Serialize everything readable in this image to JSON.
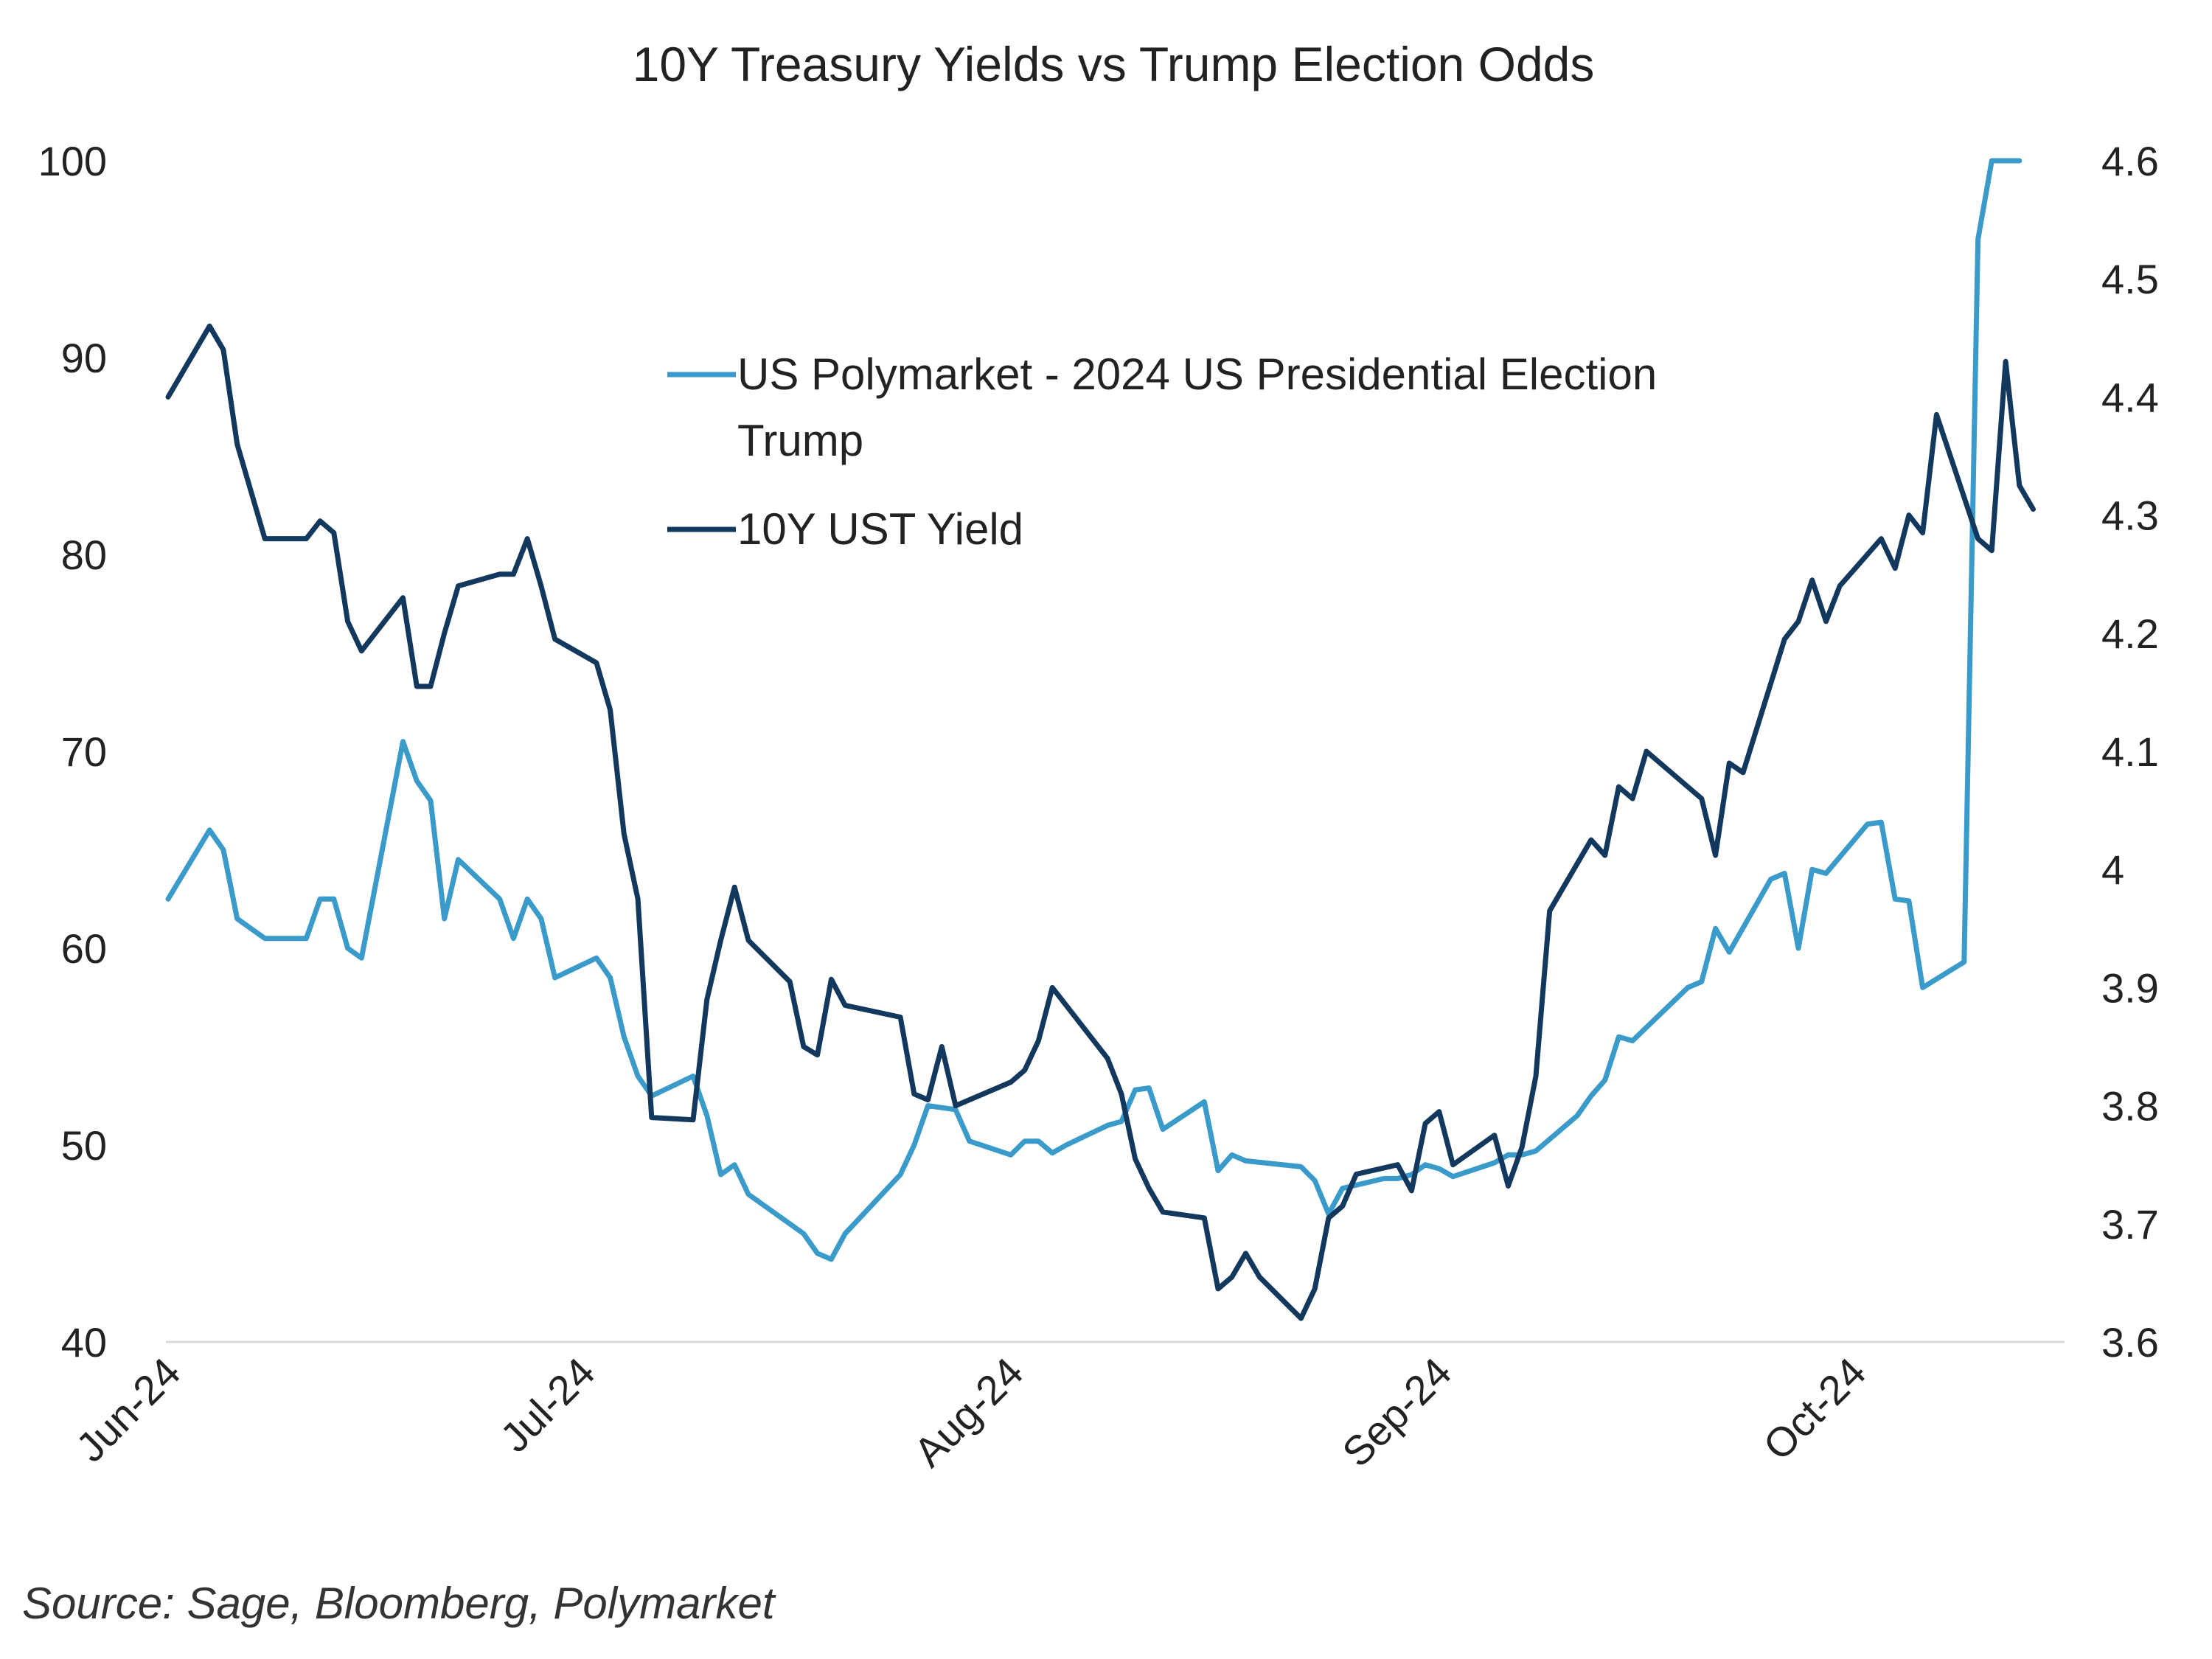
{
  "chart_data": {
    "type": "line",
    "title": "10Y Treasury Yields vs Trump Election Odds",
    "xlabel": "",
    "ylabel_left": "",
    "ylabel_right": "",
    "x_ticks": [
      {
        "label": "Jun-24",
        "t": 0
      },
      {
        "label": "Jul-24",
        "t": 30
      },
      {
        "label": "Aug-24",
        "t": 61
      },
      {
        "label": "Sep-24",
        "t": 92
      },
      {
        "label": "Oct-24",
        "t": 122
      }
    ],
    "x_range": [
      0,
      137
    ],
    "y_left": {
      "ylim": [
        40,
        100
      ],
      "ticks": [
        "40",
        "50",
        "60",
        "70",
        "80",
        "90",
        "100"
      ]
    },
    "y_right": {
      "ylim": [
        3.6,
        4.6
      ],
      "ticks": [
        "3.6",
        "3.7",
        "3.8",
        "3.9",
        "4",
        "4.1",
        "4.2",
        "4.3",
        "4.4",
        "4.5",
        "4.6"
      ]
    },
    "grid": false,
    "legend_placement": "top-center",
    "series": [
      {
        "name": "US Polymarket - 2024 US Presidential Election Trump",
        "legend_lines": [
          "US Polymarket - 2024 US Presidential Election",
          "Trump"
        ],
        "axis": "left",
        "color": "#3a9ac9",
        "points": [
          [
            0,
            62.5
          ],
          [
            3,
            66
          ],
          [
            4,
            65
          ],
          [
            5,
            61.5
          ],
          [
            7,
            60.5
          ],
          [
            10,
            60.5
          ],
          [
            11,
            62.5
          ],
          [
            12,
            62.5
          ],
          [
            13,
            60
          ],
          [
            14,
            59.5
          ],
          [
            17,
            70.5
          ],
          [
            18,
            68.5
          ],
          [
            19,
            67.5
          ],
          [
            20,
            61.5
          ],
          [
            21,
            64.5
          ],
          [
            24,
            62.5
          ],
          [
            25,
            60.5
          ],
          [
            26,
            62.5
          ],
          [
            27,
            61.5
          ],
          [
            28,
            58.5
          ],
          [
            31,
            59.5
          ],
          [
            32,
            58.5
          ],
          [
            33,
            55.5
          ],
          [
            34,
            53.5
          ],
          [
            35,
            52.5
          ],
          [
            38,
            53.5
          ],
          [
            39,
            51.5
          ],
          [
            40,
            48.5
          ],
          [
            41,
            49
          ],
          [
            42,
            47.5
          ],
          [
            45,
            46
          ],
          [
            46,
            45.5
          ],
          [
            47,
            44.5
          ],
          [
            48,
            44.2
          ],
          [
            49,
            45.5
          ],
          [
            53,
            48.5
          ],
          [
            54,
            50
          ],
          [
            55,
            52
          ],
          [
            57,
            51.8
          ],
          [
            58,
            50.2
          ],
          [
            61,
            49.5
          ],
          [
            62,
            50.2
          ],
          [
            63,
            50.2
          ],
          [
            64,
            49.6
          ],
          [
            65,
            50
          ],
          [
            68,
            51
          ],
          [
            69,
            51.2
          ],
          [
            70,
            52.8
          ],
          [
            71,
            52.9
          ],
          [
            72,
            50.8
          ],
          [
            75,
            52.2
          ],
          [
            76,
            48.7
          ],
          [
            77,
            49.5
          ],
          [
            78,
            49.2
          ],
          [
            82,
            48.9
          ],
          [
            83,
            48.2
          ],
          [
            84,
            46.5
          ],
          [
            85,
            47.8
          ],
          [
            88,
            48.3
          ],
          [
            89,
            48.3
          ],
          [
            90,
            48.5
          ],
          [
            91,
            49
          ],
          [
            92,
            48.8
          ],
          [
            93,
            48.4
          ],
          [
            96,
            49.1
          ],
          [
            97,
            49.5
          ],
          [
            98,
            49.5
          ],
          [
            99,
            49.7
          ],
          [
            102,
            51.5
          ],
          [
            103,
            52.5
          ],
          [
            104,
            53.3
          ],
          [
            105,
            55.5
          ],
          [
            106,
            55.3
          ],
          [
            110,
            58
          ],
          [
            111,
            58.3
          ],
          [
            112,
            61
          ],
          [
            113,
            59.8
          ],
          [
            116,
            63.5
          ],
          [
            117,
            63.8
          ],
          [
            118,
            60
          ],
          [
            119,
            64
          ],
          [
            120,
            63.8
          ],
          [
            123,
            66.3
          ],
          [
            124,
            66.4
          ],
          [
            125,
            62.5
          ],
          [
            126,
            62.4
          ],
          [
            127,
            58
          ],
          [
            130,
            59.3
          ],
          [
            131,
            96
          ],
          [
            132,
            100
          ],
          [
            134,
            100
          ]
        ]
      },
      {
        "name": "10Y UST Yield",
        "legend_lines": [
          "10Y UST Yield"
        ],
        "axis": "right",
        "color": "#13385e",
        "points": [
          [
            0,
            4.4
          ],
          [
            3,
            4.46
          ],
          [
            4,
            4.44
          ],
          [
            5,
            4.36
          ],
          [
            7,
            4.28
          ],
          [
            10,
            4.28
          ],
          [
            11,
            4.295
          ],
          [
            12,
            4.285
          ],
          [
            13,
            4.21
          ],
          [
            14,
            4.185
          ],
          [
            17,
            4.23
          ],
          [
            18,
            4.155
          ],
          [
            19,
            4.155
          ],
          [
            20,
            4.2
          ],
          [
            21,
            4.24
          ],
          [
            24,
            4.25
          ],
          [
            25,
            4.25
          ],
          [
            26,
            4.28
          ],
          [
            27,
            4.24
          ],
          [
            28,
            4.195
          ],
          [
            31,
            4.175
          ],
          [
            32,
            4.135
          ],
          [
            33,
            4.03
          ],
          [
            34,
            3.975
          ],
          [
            35,
            3.79
          ],
          [
            38,
            3.788
          ],
          [
            39,
            3.89
          ],
          [
            40,
            3.94
          ],
          [
            41,
            3.985
          ],
          [
            42,
            3.94
          ],
          [
            45,
            3.905
          ],
          [
            46,
            3.85
          ],
          [
            47,
            3.843
          ],
          [
            48,
            3.907
          ],
          [
            49,
            3.885
          ],
          [
            53,
            3.875
          ],
          [
            54,
            3.81
          ],
          [
            55,
            3.805
          ],
          [
            56,
            3.85
          ],
          [
            57,
            3.8
          ],
          [
            61,
            3.82
          ],
          [
            62,
            3.83
          ],
          [
            63,
            3.855
          ],
          [
            64,
            3.9
          ],
          [
            68,
            3.84
          ],
          [
            69,
            3.81
          ],
          [
            70,
            3.755
          ],
          [
            71,
            3.73
          ],
          [
            72,
            3.71
          ],
          [
            75,
            3.705
          ],
          [
            76,
            3.645
          ],
          [
            77,
            3.655
          ],
          [
            78,
            3.675
          ],
          [
            79,
            3.655
          ],
          [
            82,
            3.62
          ],
          [
            83,
            3.645
          ],
          [
            84,
            3.705
          ],
          [
            85,
            3.715
          ],
          [
            86,
            3.742
          ],
          [
            89,
            3.75
          ],
          [
            90,
            3.728
          ],
          [
            91,
            3.785
          ],
          [
            92,
            3.795
          ],
          [
            93,
            3.75
          ],
          [
            96,
            3.775
          ],
          [
            97,
            3.732
          ],
          [
            98,
            3.765
          ],
          [
            99,
            3.825
          ],
          [
            100,
            3.965
          ],
          [
            103,
            4.025
          ],
          [
            104,
            4.012
          ],
          [
            105,
            4.07
          ],
          [
            106,
            4.06
          ],
          [
            107,
            4.1
          ],
          [
            111,
            4.06
          ],
          [
            112,
            4.012
          ],
          [
            113,
            4.09
          ],
          [
            114,
            4.082
          ],
          [
            117,
            4.195
          ],
          [
            118,
            4.21
          ],
          [
            119,
            4.245
          ],
          [
            120,
            4.21
          ],
          [
            121,
            4.24
          ],
          [
            124,
            4.28
          ],
          [
            125,
            4.255
          ],
          [
            126,
            4.3
          ],
          [
            127,
            4.285
          ],
          [
            128,
            4.385
          ],
          [
            131,
            4.28
          ],
          [
            132,
            4.27
          ],
          [
            133,
            4.43
          ],
          [
            134,
            4.325
          ],
          [
            135,
            4.305
          ]
        ]
      }
    ]
  },
  "source": "Source: Sage, Bloomberg, Polymarket"
}
